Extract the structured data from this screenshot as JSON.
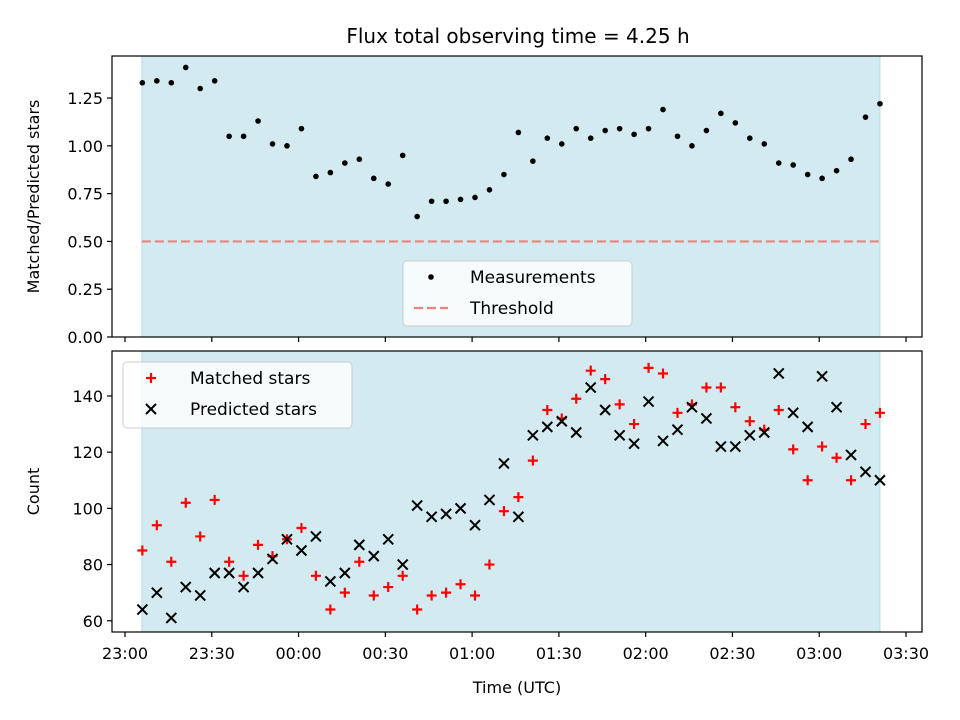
{
  "title": "Flux total observing time = 4.25 h",
  "colors": {
    "observing_band": "#d3eaf0",
    "measurements": "#000000",
    "threshold": "#f08080",
    "matched": "#ff0000",
    "predicted": "#000000"
  },
  "chart_data": [
    {
      "type": "scatter",
      "ylabel": "Matched/Predicted stars",
      "xlabel": "",
      "ylim": [
        0,
        1.47
      ],
      "yticks": [
        "0.00",
        "0.25",
        "0.50",
        "0.75",
        "1.00",
        "1.25"
      ],
      "threshold": 0.5,
      "legend_position": "lower-center",
      "legend": [
        "Measurements",
        "Threshold"
      ],
      "series": [
        {
          "name": "Measurements",
          "marker": "dot",
          "points": [
            [
              "23:06",
              1.33
            ],
            [
              "23:11",
              1.34
            ],
            [
              "23:16",
              1.33
            ],
            [
              "23:21",
              1.41
            ],
            [
              "23:26",
              1.3
            ],
            [
              "23:31",
              1.34
            ],
            [
              "23:36",
              1.05
            ],
            [
              "23:41",
              1.05
            ],
            [
              "23:46",
              1.13
            ],
            [
              "23:51",
              1.01
            ],
            [
              "23:56",
              1.0
            ],
            [
              "00:01",
              1.09
            ],
            [
              "00:06",
              0.84
            ],
            [
              "00:11",
              0.86
            ],
            [
              "00:16",
              0.91
            ],
            [
              "00:21",
              0.93
            ],
            [
              "00:26",
              0.83
            ],
            [
              "00:31",
              0.8
            ],
            [
              "00:36",
              0.95
            ],
            [
              "00:41",
              0.63
            ],
            [
              "00:46",
              0.71
            ],
            [
              "00:51",
              0.71
            ],
            [
              "00:56",
              0.72
            ],
            [
              "01:01",
              0.73
            ],
            [
              "01:06",
              0.77
            ],
            [
              "01:11",
              0.85
            ],
            [
              "01:16",
              1.07
            ],
            [
              "01:21",
              0.92
            ],
            [
              "01:26",
              1.04
            ],
            [
              "01:31",
              1.01
            ],
            [
              "01:36",
              1.09
            ],
            [
              "01:41",
              1.04
            ],
            [
              "01:46",
              1.08
            ],
            [
              "01:51",
              1.09
            ],
            [
              "01:56",
              1.06
            ],
            [
              "02:01",
              1.09
            ],
            [
              "02:06",
              1.19
            ],
            [
              "02:11",
              1.05
            ],
            [
              "02:16",
              1.0
            ],
            [
              "02:21",
              1.08
            ],
            [
              "02:26",
              1.17
            ],
            [
              "02:31",
              1.12
            ],
            [
              "02:36",
              1.04
            ],
            [
              "02:41",
              1.01
            ],
            [
              "02:46",
              0.91
            ],
            [
              "02:51",
              0.9
            ],
            [
              "02:56",
              0.85
            ],
            [
              "03:01",
              0.83
            ],
            [
              "03:06",
              0.87
            ],
            [
              "03:11",
              0.93
            ],
            [
              "03:16",
              1.15
            ],
            [
              "03:21",
              1.22
            ]
          ]
        }
      ]
    },
    {
      "type": "scatter",
      "ylabel": "Count",
      "xlabel": "Time (UTC)",
      "ylim": [
        56,
        156
      ],
      "yticks": [
        "60",
        "80",
        "100",
        "120",
        "140"
      ],
      "xticks": [
        "23:00",
        "23:30",
        "00:00",
        "00:30",
        "01:00",
        "01:30",
        "02:00",
        "02:30",
        "03:00",
        "03:30"
      ],
      "legend_position": "top-left",
      "legend": [
        "Matched stars",
        "Predicted stars"
      ],
      "series": [
        {
          "name": "Matched stars",
          "marker": "plus",
          "points": [
            [
              "23:06",
              85
            ],
            [
              "23:11",
              94
            ],
            [
              "23:16",
              81
            ],
            [
              "23:21",
              102
            ],
            [
              "23:26",
              90
            ],
            [
              "23:31",
              103
            ],
            [
              "23:36",
              81
            ],
            [
              "23:41",
              76
            ],
            [
              "23:46",
              87
            ],
            [
              "23:51",
              83
            ],
            [
              "23:56",
              89
            ],
            [
              "00:01",
              93
            ],
            [
              "00:06",
              76
            ],
            [
              "00:11",
              64
            ],
            [
              "00:16",
              70
            ],
            [
              "00:21",
              81
            ],
            [
              "00:26",
              69
            ],
            [
              "00:31",
              72
            ],
            [
              "00:36",
              76
            ],
            [
              "00:41",
              64
            ],
            [
              "00:46",
              69
            ],
            [
              "00:51",
              70
            ],
            [
              "00:56",
              73
            ],
            [
              "01:01",
              69
            ],
            [
              "01:06",
              80
            ],
            [
              "01:11",
              99
            ],
            [
              "01:16",
              104
            ],
            [
              "01:21",
              117
            ],
            [
              "01:26",
              135
            ],
            [
              "01:31",
              132
            ],
            [
              "01:36",
              139
            ],
            [
              "01:41",
              149
            ],
            [
              "01:46",
              146
            ],
            [
              "01:51",
              137
            ],
            [
              "01:56",
              130
            ],
            [
              "02:01",
              150
            ],
            [
              "02:06",
              148
            ],
            [
              "02:11",
              134
            ],
            [
              "02:16",
              137
            ],
            [
              "02:21",
              143
            ],
            [
              "02:26",
              143
            ],
            [
              "02:31",
              136
            ],
            [
              "02:36",
              131
            ],
            [
              "02:41",
              128
            ],
            [
              "02:46",
              135
            ],
            [
              "02:51",
              121
            ],
            [
              "02:56",
              110
            ],
            [
              "03:01",
              122
            ],
            [
              "03:06",
              118
            ],
            [
              "03:11",
              110
            ],
            [
              "03:16",
              130
            ],
            [
              "03:21",
              134
            ]
          ]
        },
        {
          "name": "Predicted stars",
          "marker": "x",
          "points": [
            [
              "23:06",
              64
            ],
            [
              "23:11",
              70
            ],
            [
              "23:16",
              61
            ],
            [
              "23:21",
              72
            ],
            [
              "23:26",
              69
            ],
            [
              "23:31",
              77
            ],
            [
              "23:36",
              77
            ],
            [
              "23:41",
              72
            ],
            [
              "23:46",
              77
            ],
            [
              "23:51",
              82
            ],
            [
              "23:56",
              89
            ],
            [
              "00:01",
              85
            ],
            [
              "00:06",
              90
            ],
            [
              "00:11",
              74
            ],
            [
              "00:16",
              77
            ],
            [
              "00:21",
              87
            ],
            [
              "00:26",
              83
            ],
            [
              "00:31",
              89
            ],
            [
              "00:36",
              80
            ],
            [
              "00:41",
              101
            ],
            [
              "00:46",
              97
            ],
            [
              "00:51",
              98
            ],
            [
              "00:56",
              100
            ],
            [
              "01:01",
              94
            ],
            [
              "01:06",
              103
            ],
            [
              "01:11",
              116
            ],
            [
              "01:16",
              97
            ],
            [
              "01:21",
              126
            ],
            [
              "01:26",
              129
            ],
            [
              "01:31",
              131
            ],
            [
              "01:36",
              127
            ],
            [
              "01:41",
              143
            ],
            [
              "01:46",
              135
            ],
            [
              "01:51",
              126
            ],
            [
              "01:56",
              123
            ],
            [
              "02:01",
              138
            ],
            [
              "02:06",
              124
            ],
            [
              "02:11",
              128
            ],
            [
              "02:16",
              136
            ],
            [
              "02:21",
              132
            ],
            [
              "02:26",
              122
            ],
            [
              "02:31",
              122
            ],
            [
              "02:36",
              126
            ],
            [
              "02:41",
              127
            ],
            [
              "02:46",
              148
            ],
            [
              "02:51",
              134
            ],
            [
              "02:56",
              129
            ],
            [
              "03:01",
              147
            ],
            [
              "03:06",
              136
            ],
            [
              "03:11",
              119
            ],
            [
              "03:16",
              113
            ],
            [
              "03:21",
              110
            ]
          ]
        }
      ]
    }
  ]
}
